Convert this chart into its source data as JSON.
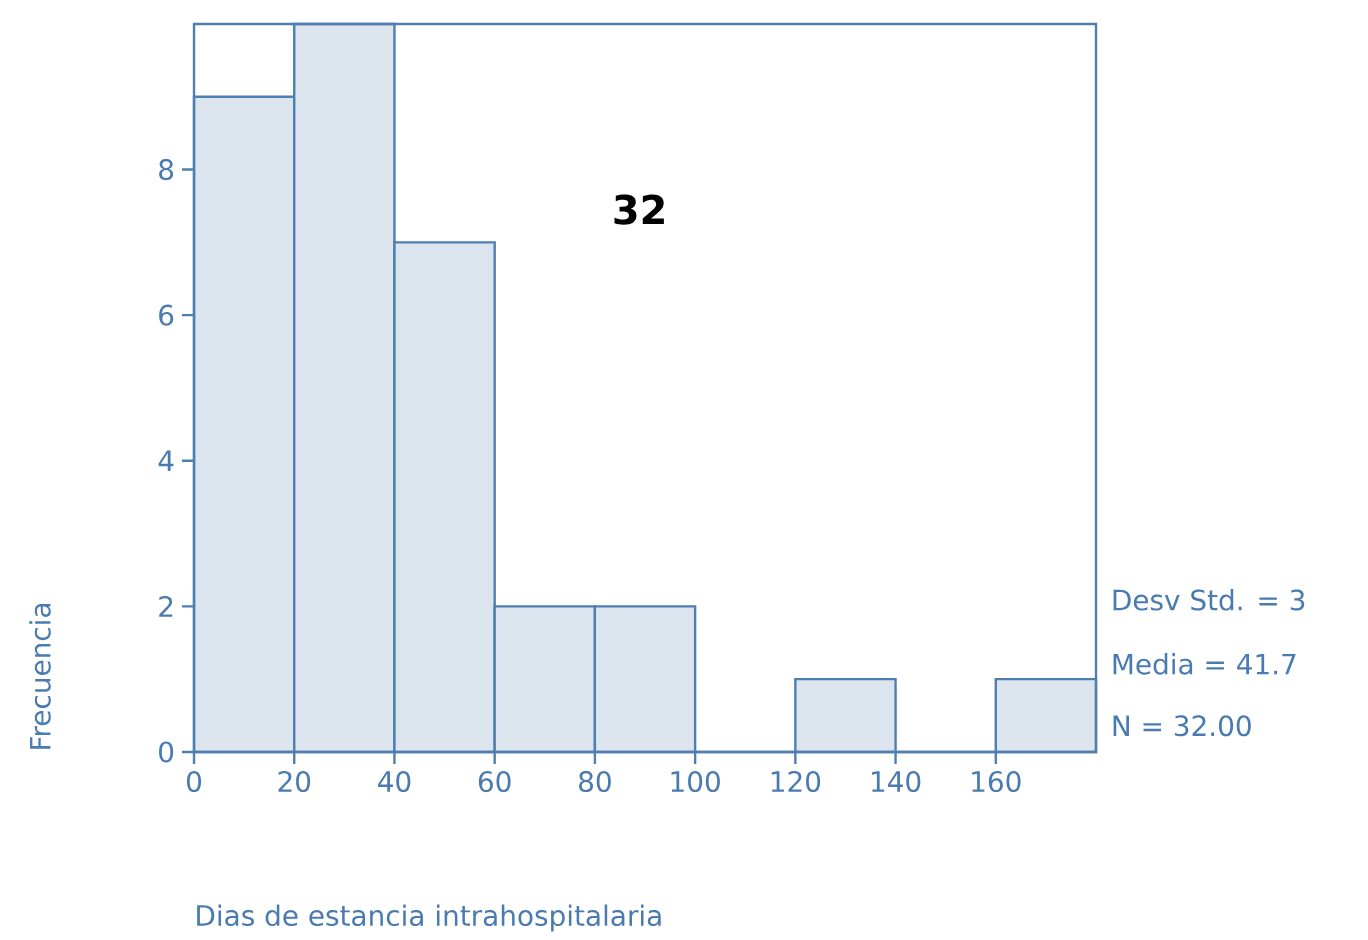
{
  "chart_data": {
    "type": "histogram",
    "bins": [
      0,
      20,
      40,
      60,
      80,
      100,
      120,
      140,
      160,
      180
    ],
    "values": [
      9,
      10,
      7,
      2,
      2,
      0,
      1,
      0,
      1
    ],
    "color": "#dce4ee",
    "xlim": [
      0,
      180
    ],
    "xticks": [
      0,
      20,
      40,
      60,
      80,
      100,
      120,
      140,
      160
    ],
    "ylim": [
      0,
      10
    ],
    "yticks": [
      0,
      2,
      4,
      6,
      8
    ],
    "xlabel": "Dias de estancia intrahospitalaria",
    "ylabel": "Frecuencia",
    "annotations": [
      "32",
      "Desv Std. = 3",
      "Media = 41.7",
      "N = 32.00"
    ],
    "grid": false
  }
}
